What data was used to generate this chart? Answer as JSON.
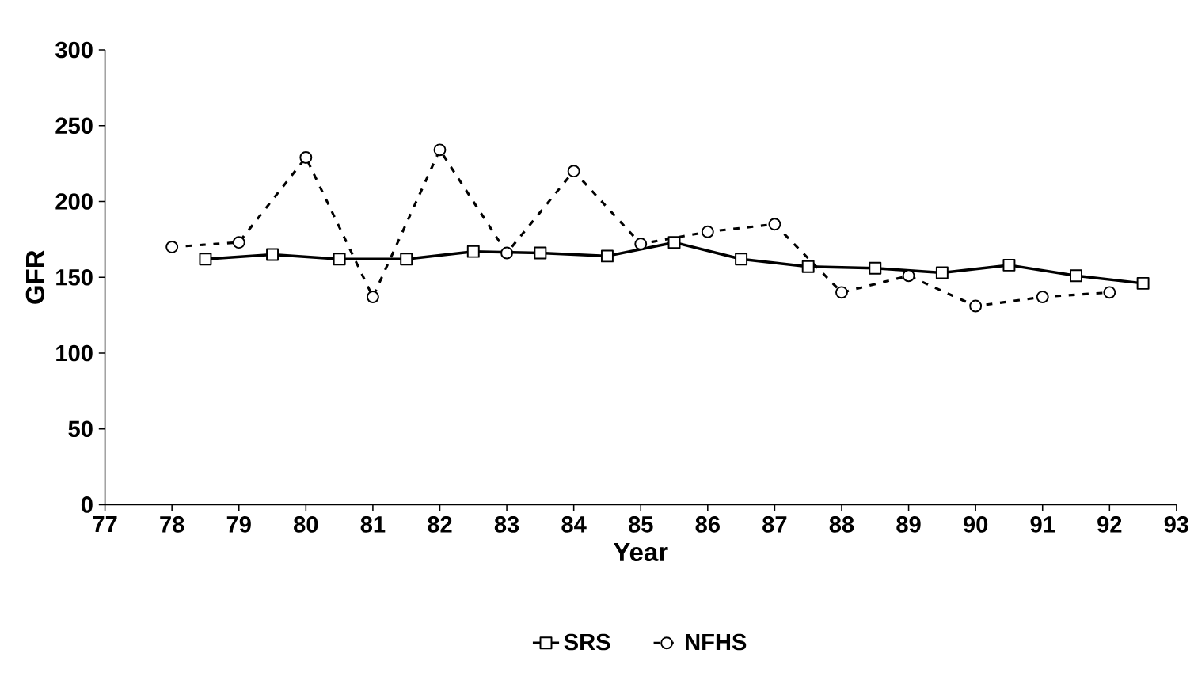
{
  "chart_data": {
    "type": "line",
    "xlabel": "Year",
    "ylabel": "GFR",
    "xlim": [
      77,
      93
    ],
    "xticks": [
      77,
      78,
      79,
      80,
      81,
      82,
      83,
      84,
      85,
      86,
      87,
      88,
      89,
      90,
      91,
      92,
      93
    ],
    "ylim": [
      0,
      300
    ],
    "yticks": [
      0,
      50,
      100,
      150,
      200,
      250,
      300
    ],
    "grid": false,
    "legend": "bottom",
    "series": [
      {
        "name": "SRS",
        "color": "#000000",
        "marker": "square",
        "line_style": "solid",
        "x": [
          78.5,
          79.5,
          80.5,
          81.5,
          82.5,
          83.5,
          84.5,
          85.5,
          86.5,
          87.5,
          88.5,
          89.5,
          90.5,
          91.5,
          92.5
        ],
        "values": [
          162,
          165,
          162,
          162,
          167,
          166,
          164,
          173,
          162,
          157,
          156,
          153,
          158,
          151,
          146
        ]
      },
      {
        "name": "NFHS",
        "color": "#000000",
        "marker": "circle",
        "line_style": "dashed",
        "x": [
          78,
          79,
          80,
          81,
          82,
          83,
          84,
          85,
          86,
          87,
          88,
          89,
          90,
          91,
          92
        ],
        "values": [
          170,
          173,
          229,
          137,
          234,
          166,
          220,
          172,
          180,
          185,
          140,
          151,
          131,
          137,
          140
        ]
      }
    ]
  }
}
